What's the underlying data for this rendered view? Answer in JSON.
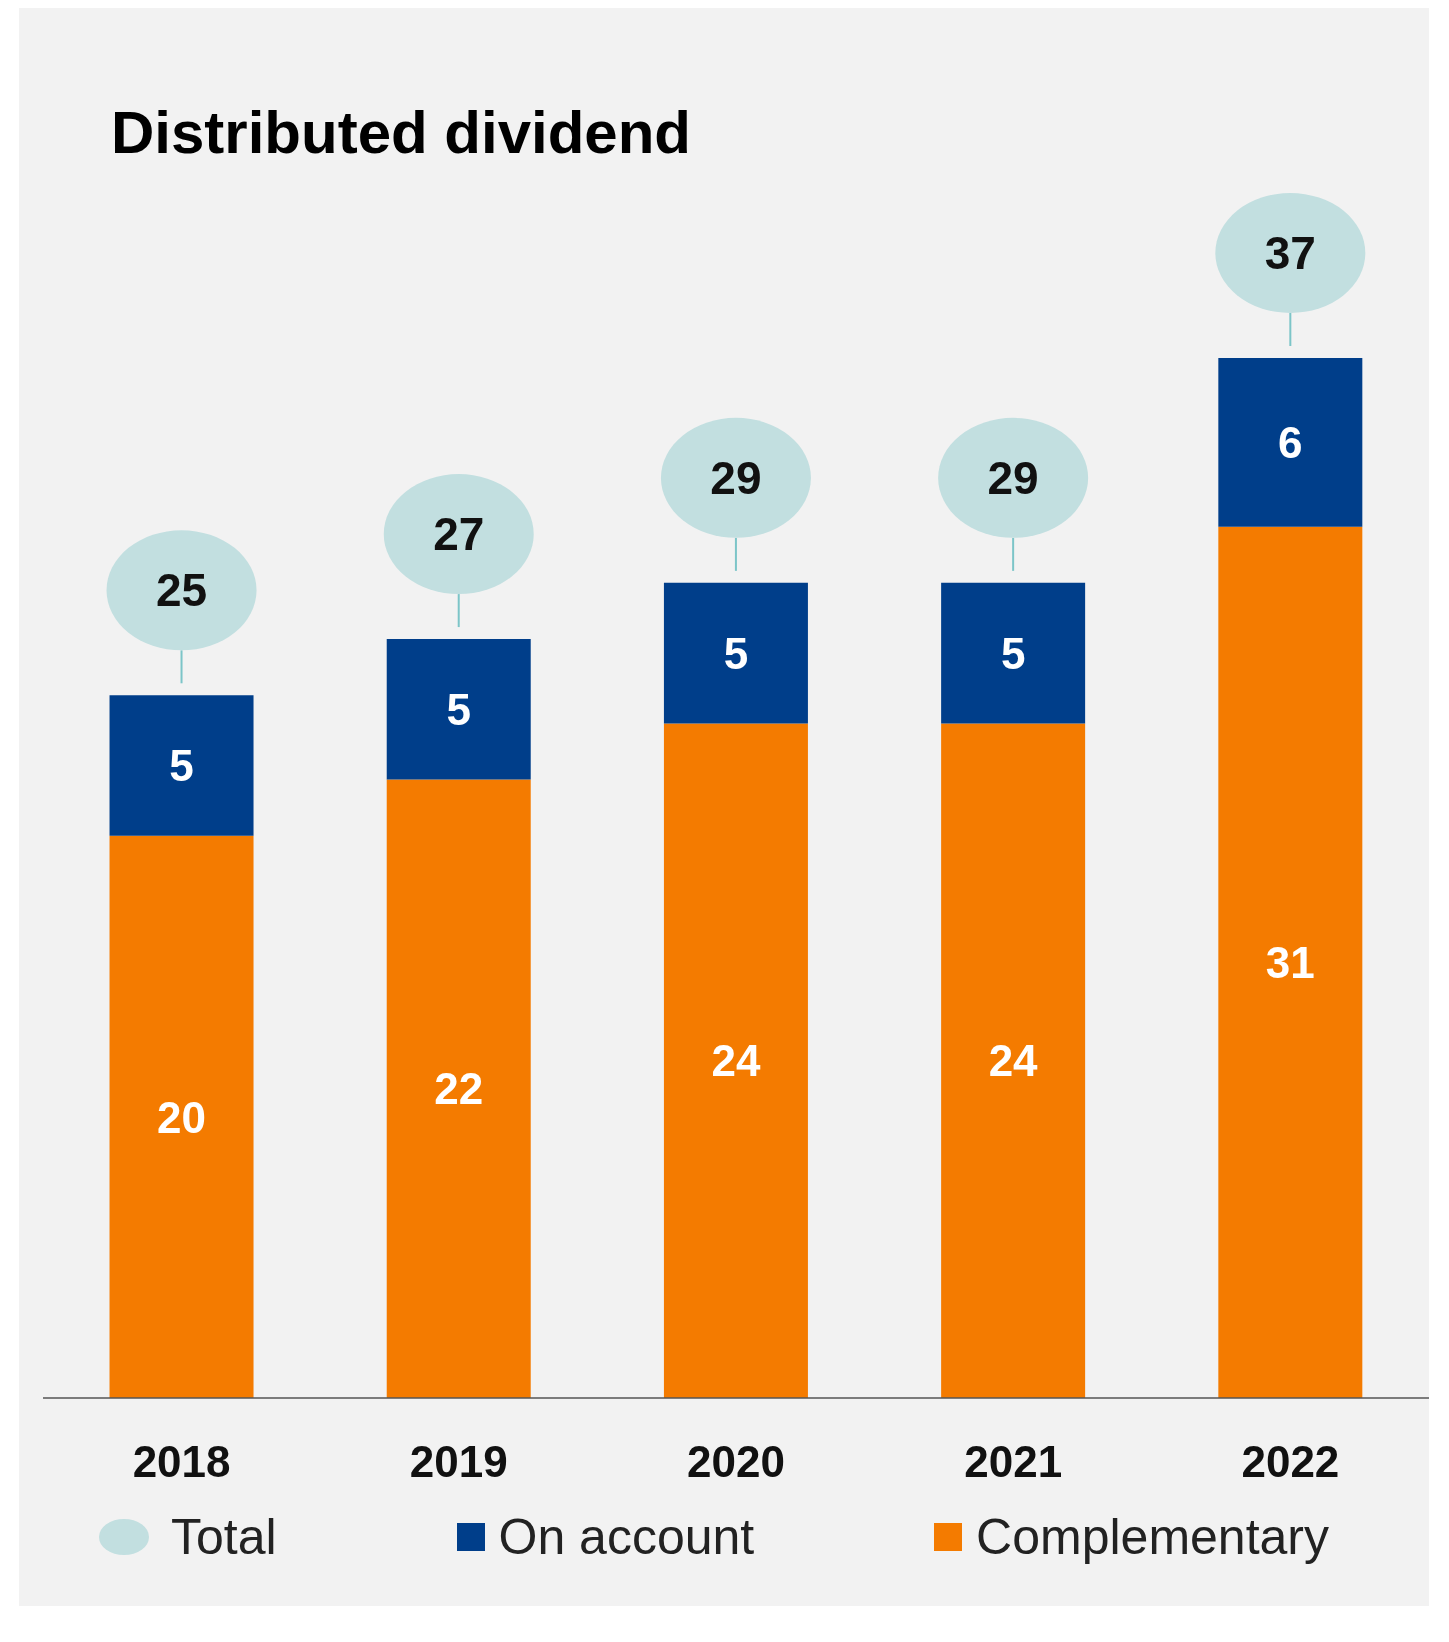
{
  "chart_data": {
    "type": "bar",
    "title": "Distributed dividend",
    "categories": [
      "2018",
      "2019",
      "2020",
      "2021",
      "2022"
    ],
    "series": [
      {
        "name": "Complementary",
        "color": "#f47b00",
        "values": [
          20,
          22,
          24,
          24,
          31
        ]
      },
      {
        "name": "On account",
        "color": "#003e8a",
        "values": [
          5,
          5,
          5,
          5,
          6
        ]
      }
    ],
    "stacked": true,
    "data_labels": true,
    "totals": [
      "25",
      "27",
      "29",
      "29",
      "37"
    ],
    "annotations": [
      "Total"
    ],
    "legend": "bottom"
  }
}
